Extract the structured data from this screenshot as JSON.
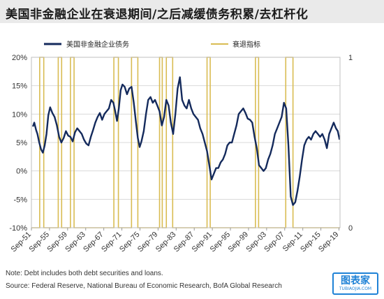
{
  "title": "美国非金融企业在衰退期间/之后减缓债务积累/去杠杆化",
  "notes": {
    "note": "Note: Debt includes both debt securities and loans.",
    "source": "Source: Federal Reserve, National Bureau of Economic Research, BofA Global Research"
  },
  "watermark": {
    "main": "图表家",
    "sub": "TUBIAOJIA.COM"
  },
  "colors": {
    "debt": "#142a5c",
    "recession": "#d9bc52",
    "grid": "#d9d9d9"
  },
  "chart_data": {
    "type": "line",
    "title": "",
    "xlabel": "",
    "ylabel": "",
    "left_axis": {
      "range": [
        -10,
        20
      ],
      "ticks": [
        "-10%",
        "-5%",
        "0%",
        "5%",
        "10%",
        "15%",
        "20%"
      ],
      "tick_values": [
        -10,
        -5,
        0,
        5,
        10,
        15,
        20
      ]
    },
    "right_axis": {
      "range": [
        0,
        1
      ],
      "ticks": [
        "0",
        "1"
      ],
      "tick_values": [
        0,
        1
      ]
    },
    "x_range": [
      1951.67,
      2019.9
    ],
    "x_ticks": [
      "Sep-51",
      "Sep-55",
      "Sep-59",
      "Sep-63",
      "Sep-67",
      "Sep-71",
      "Sep-75",
      "Sep-79",
      "Sep-83",
      "Sep-87",
      "Sep-91",
      "Sep-95",
      "Sep-99",
      "Sep-03",
      "Sep-07",
      "Sep-11",
      "Sep-15",
      "Sep-19"
    ],
    "x_tick_values": [
      1951.67,
      1955.67,
      1959.67,
      1963.67,
      1967.67,
      1971.67,
      1975.67,
      1979.67,
      1983.67,
      1987.67,
      1991.67,
      1995.67,
      1999.67,
      2003.67,
      2007.67,
      2011.67,
      2015.67,
      2019.67
    ],
    "legend": {
      "position": "top",
      "entries": [
        "美国非金融企业债务",
        "衰退指标"
      ]
    },
    "series": [
      {
        "name": "美国非金融企业债务",
        "axis": "left",
        "x": [
          1952.0,
          1952.3,
          1952.7,
          1953.0,
          1953.4,
          1953.8,
          1954.2,
          1954.6,
          1955.0,
          1955.4,
          1955.8,
          1956.3,
          1956.8,
          1957.3,
          1957.8,
          1958.3,
          1958.8,
          1959.3,
          1959.8,
          1960.3,
          1960.8,
          1961.3,
          1961.8,
          1962.3,
          1962.8,
          1963.3,
          1963.8,
          1964.3,
          1964.8,
          1965.3,
          1965.8,
          1966.3,
          1966.8,
          1967.3,
          1967.8,
          1968.3,
          1968.8,
          1969.3,
          1969.8,
          1970.2,
          1970.6,
          1971.0,
          1971.4,
          1971.8,
          1972.3,
          1972.8,
          1973.3,
          1973.8,
          1974.3,
          1974.8,
          1975.2,
          1975.6,
          1976.0,
          1976.5,
          1977.0,
          1977.5,
          1978.0,
          1978.5,
          1979.0,
          1979.5,
          1980.0,
          1980.5,
          1981.0,
          1981.5,
          1982.0,
          1982.5,
          1983.0,
          1983.5,
          1984.0,
          1984.5,
          1985.0,
          1985.5,
          1986.0,
          1986.5,
          1987.0,
          1987.5,
          1988.0,
          1988.5,
          1989.0,
          1989.5,
          1990.0,
          1990.5,
          1991.0,
          1991.5,
          1992.0,
          1992.5,
          1993.0,
          1993.5,
          1994.0,
          1994.5,
          1995.0,
          1995.5,
          1996.0,
          1996.5,
          1997.0,
          1997.5,
          1998.0,
          1998.5,
          1999.0,
          1999.5,
          2000.0,
          2000.5,
          2001.0,
          2001.5,
          2002.0,
          2002.5,
          2003.0,
          2003.5,
          2004.0,
          2004.5,
          2005.0,
          2005.5,
          2006.0,
          2006.5,
          2007.0,
          2007.5,
          2008.0,
          2008.5,
          2009.0,
          2009.5,
          2010.0,
          2010.5,
          2011.0,
          2011.5,
          2012.0,
          2012.5,
          2013.0,
          2013.5,
          2014.0,
          2014.5,
          2015.0,
          2015.5,
          2016.0,
          2016.5,
          2017.0,
          2017.5,
          2018.0,
          2018.5,
          2019.0,
          2019.4,
          2019.8
        ],
        "values": [
          7.8,
          8.5,
          7.2,
          6.5,
          5.0,
          3.8,
          3.2,
          4.5,
          6.5,
          9.8,
          11.2,
          10.2,
          9.5,
          8.0,
          6.0,
          5.0,
          5.8,
          7.0,
          6.2,
          6.0,
          5.2,
          6.8,
          7.5,
          7.0,
          6.5,
          5.5,
          4.8,
          4.5,
          6.0,
          7.2,
          8.5,
          9.5,
          10.2,
          9.0,
          10.0,
          10.5,
          11.0,
          12.5,
          12.0,
          10.5,
          8.8,
          11.0,
          14.2,
          15.2,
          14.8,
          13.5,
          14.5,
          14.8,
          12.0,
          8.5,
          5.8,
          4.2,
          5.2,
          7.0,
          10.0,
          12.5,
          13.0,
          12.0,
          12.5,
          11.5,
          10.5,
          8.0,
          9.5,
          12.5,
          11.5,
          8.5,
          6.5,
          10.0,
          14.5,
          16.5,
          12.5,
          11.5,
          11.0,
          12.5,
          11.0,
          10.0,
          9.5,
          9.0,
          7.5,
          6.5,
          5.0,
          3.5,
          1.0,
          -1.5,
          -0.5,
          0.5,
          0.5,
          1.5,
          2.0,
          3.0,
          4.5,
          5.0,
          5.0,
          6.5,
          8.0,
          10.0,
          10.5,
          11.0,
          10.2,
          9.2,
          9.0,
          8.5,
          6.0,
          4.0,
          1.0,
          0.5,
          0.0,
          0.5,
          2.0,
          3.0,
          4.5,
          6.5,
          7.5,
          8.5,
          9.5,
          12.0,
          11.0,
          4.5,
          -4.5,
          -6.0,
          -5.5,
          -3.5,
          -1.0,
          2.0,
          4.5,
          5.5,
          6.0,
          5.5,
          6.5,
          7.0,
          6.5,
          6.0,
          6.5,
          5.5,
          4.0,
          6.5,
          7.5,
          8.5,
          7.5,
          7.0,
          5.5
        ]
      },
      {
        "name": "衰退指标",
        "axis": "right",
        "type": "step",
        "recession_periods": [
          [
            1953.5,
            1954.4
          ],
          [
            1957.6,
            1958.35
          ],
          [
            1960.3,
            1961.1
          ],
          [
            1969.9,
            1970.9
          ],
          [
            1973.8,
            1975.2
          ],
          [
            1980.0,
            1980.6
          ],
          [
            1981.5,
            1982.9
          ],
          [
            1990.5,
            1991.2
          ],
          [
            2001.2,
            2001.9
          ],
          [
            2007.9,
            2009.5
          ]
        ]
      }
    ]
  }
}
